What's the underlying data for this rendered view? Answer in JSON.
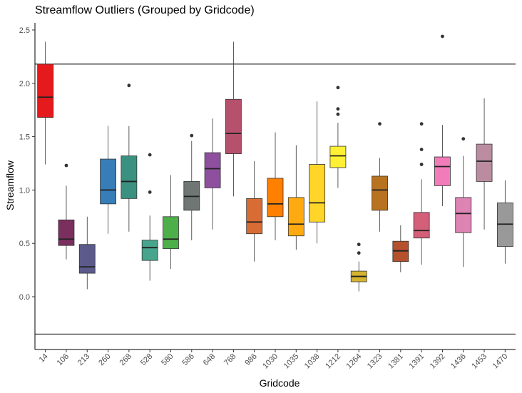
{
  "chart_data": {
    "type": "boxplot",
    "title": "Streamflow Outliers (Grouped by Gridcode)",
    "xlabel": "Gridcode",
    "ylabel": "Streamflow",
    "ylim": [
      -0.5,
      2.6
    ],
    "yticks": [
      "0.0",
      "0.5",
      "1.0",
      "1.5",
      "2.0",
      "2.5"
    ],
    "reference_lines": [
      2.18,
      -0.35
    ],
    "grid": false,
    "legend": "none",
    "categories": [
      "14",
      "106",
      "213",
      "260",
      "268",
      "528",
      "580",
      "586",
      "648",
      "768",
      "986",
      "1030",
      "1035",
      "1038",
      "1212",
      "1264",
      "1323",
      "1381",
      "1391",
      "1392",
      "1436",
      "1453",
      "1470"
    ],
    "boxes": [
      {
        "category": "14",
        "color": "#e41a1c",
        "whisker_low": 1.24,
        "q1": 1.68,
        "median": 1.87,
        "q3": 2.18,
        "whisker_high": 2.39,
        "outliers": []
      },
      {
        "category": "106",
        "color": "#7b2f5e",
        "whisker_low": 0.35,
        "q1": 0.48,
        "median": 0.54,
        "q3": 0.72,
        "whisker_high": 1.04,
        "outliers": [
          1.23
        ]
      },
      {
        "category": "213",
        "color": "#5b5a8a",
        "whisker_low": 0.07,
        "q1": 0.22,
        "median": 0.28,
        "q3": 0.49,
        "whisker_high": 0.75,
        "outliers": []
      },
      {
        "category": "260",
        "color": "#377eb8",
        "whisker_low": 0.59,
        "q1": 0.87,
        "median": 1.0,
        "q3": 1.29,
        "whisker_high": 1.6,
        "outliers": []
      },
      {
        "category": "268",
        "color": "#3b9180",
        "whisker_low": 0.61,
        "q1": 0.92,
        "median": 1.08,
        "q3": 1.32,
        "whisker_high": 1.6,
        "outliers": [
          1.98
        ]
      },
      {
        "category": "528",
        "color": "#47a58e",
        "whisker_low": 0.15,
        "q1": 0.34,
        "median": 0.46,
        "q3": 0.53,
        "whisker_high": 0.76,
        "outliers": [
          0.98,
          1.33
        ]
      },
      {
        "category": "580",
        "color": "#4daf4a",
        "whisker_low": 0.26,
        "q1": 0.45,
        "median": 0.54,
        "q3": 0.75,
        "whisker_high": 1.14,
        "outliers": []
      },
      {
        "category": "586",
        "color": "#6f7674",
        "whisker_low": 0.53,
        "q1": 0.81,
        "median": 0.94,
        "q3": 1.08,
        "whisker_high": 1.46,
        "outliers": [
          1.51
        ]
      },
      {
        "category": "648",
        "color": "#8e4f9f",
        "whisker_low": 0.63,
        "q1": 1.02,
        "median": 1.2,
        "q3": 1.35,
        "whisker_high": 1.67,
        "outliers": []
      },
      {
        "category": "768",
        "color": "#b5506d",
        "whisker_low": 0.94,
        "q1": 1.34,
        "median": 1.53,
        "q3": 1.85,
        "whisker_high": 2.39,
        "outliers": []
      },
      {
        "category": "986",
        "color": "#d96c34",
        "whisker_low": 0.33,
        "q1": 0.59,
        "median": 0.7,
        "q3": 0.92,
        "whisker_high": 1.27,
        "outliers": []
      },
      {
        "category": "1030",
        "color": "#ff7f00",
        "whisker_low": 0.53,
        "q1": 0.75,
        "median": 0.87,
        "q3": 1.11,
        "whisker_high": 1.54,
        "outliers": []
      },
      {
        "category": "1035",
        "color": "#ffaa11",
        "whisker_low": 0.44,
        "q1": 0.57,
        "median": 0.68,
        "q3": 0.93,
        "whisker_high": 1.42,
        "outliers": []
      },
      {
        "category": "1038",
        "color": "#ffd52a",
        "whisker_low": 0.5,
        "q1": 0.7,
        "median": 0.88,
        "q3": 1.24,
        "whisker_high": 1.83,
        "outliers": []
      },
      {
        "category": "1212",
        "color": "#fff033",
        "whisker_low": 1.02,
        "q1": 1.21,
        "median": 1.32,
        "q3": 1.41,
        "whisker_high": 1.63,
        "outliers": [
          1.71,
          1.76,
          1.96
        ]
      },
      {
        "category": "1264",
        "color": "#d4b32e",
        "whisker_low": 0.05,
        "q1": 0.14,
        "median": 0.19,
        "q3": 0.24,
        "whisker_high": 0.33,
        "outliers": [
          0.41,
          0.49
        ]
      },
      {
        "category": "1323",
        "color": "#b87321",
        "whisker_low": 0.61,
        "q1": 0.81,
        "median": 1.0,
        "q3": 1.13,
        "whisker_high": 1.3,
        "outliers": [
          1.62
        ]
      },
      {
        "category": "1381",
        "color": "#b5512d",
        "whisker_low": 0.23,
        "q1": 0.33,
        "median": 0.43,
        "q3": 0.52,
        "whisker_high": 0.67,
        "outliers": []
      },
      {
        "category": "1391",
        "color": "#d45f79",
        "whisker_low": 0.3,
        "q1": 0.55,
        "median": 0.62,
        "q3": 0.79,
        "whisker_high": 1.1,
        "outliers": [
          1.24,
          1.38,
          1.62
        ]
      },
      {
        "category": "1392",
        "color": "#f27cba",
        "whisker_low": 0.85,
        "q1": 1.04,
        "median": 1.22,
        "q3": 1.31,
        "whisker_high": 1.61,
        "outliers": [
          2.44
        ]
      },
      {
        "category": "1436",
        "color": "#de84b4",
        "whisker_low": 0.28,
        "q1": 0.6,
        "median": 0.78,
        "q3": 0.93,
        "whisker_high": 1.32,
        "outliers": [
          1.48
        ]
      },
      {
        "category": "1453",
        "color": "#bb8c9f",
        "whisker_low": 0.63,
        "q1": 1.08,
        "median": 1.27,
        "q3": 1.43,
        "whisker_high": 1.86,
        "outliers": []
      },
      {
        "category": "1470",
        "color": "#999999",
        "whisker_low": 0.31,
        "q1": 0.47,
        "median": 0.68,
        "q3": 0.88,
        "whisker_high": 1.09,
        "outliers": []
      }
    ]
  }
}
